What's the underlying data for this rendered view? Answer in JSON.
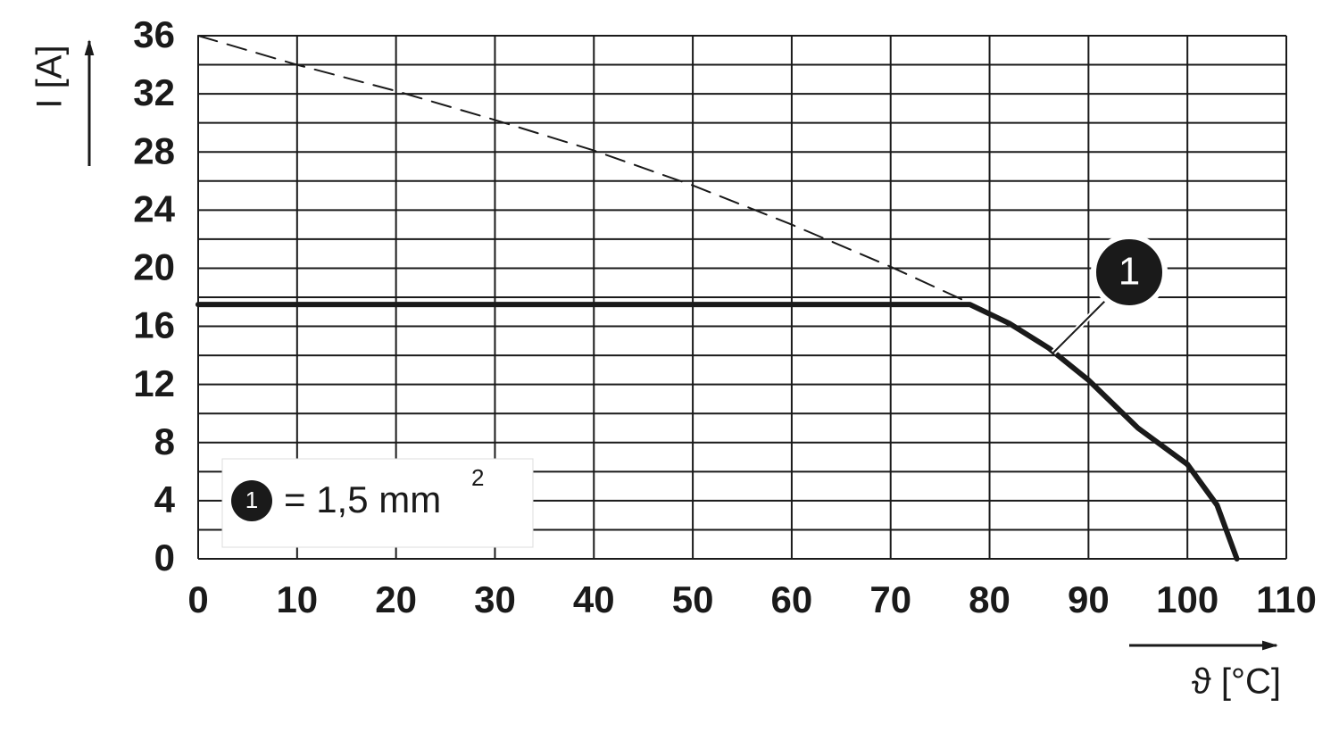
{
  "chart_data": {
    "type": "line",
    "xlabel": "ϑ [°C]",
    "ylabel": "I [A]",
    "xlim": [
      0,
      110
    ],
    "ylim": [
      0,
      36
    ],
    "xticks": [
      0,
      10,
      20,
      30,
      40,
      50,
      60,
      70,
      80,
      90,
      100,
      110
    ],
    "yticks": [
      0,
      4,
      8,
      12,
      16,
      20,
      24,
      28,
      32,
      36
    ],
    "yminorticks": [
      2,
      6,
      10,
      14,
      18,
      22,
      26,
      30,
      34
    ],
    "grid": true,
    "series": [
      {
        "color": "#1a1a1a",
        "style": "dashed",
        "x": [
          0,
          10,
          20,
          30,
          40,
          50,
          60,
          70,
          78
        ],
        "values": [
          36,
          34,
          32.2,
          30.2,
          28.1,
          25.7,
          23,
          20.1,
          17.6
        ]
      },
      {
        "color": "#1a1a1a",
        "style": "solid",
        "x": [
          0,
          78,
          82,
          86,
          90,
          95,
          100,
          103,
          105
        ],
        "values": [
          17.5,
          17.5,
          16.2,
          14.5,
          12.3,
          9,
          6.5,
          3.7,
          0
        ]
      }
    ],
    "annotation": {
      "label": "1"
    },
    "legend": {
      "marker": "1",
      "text": "= 1,5 mm",
      "superscript": "2"
    }
  }
}
